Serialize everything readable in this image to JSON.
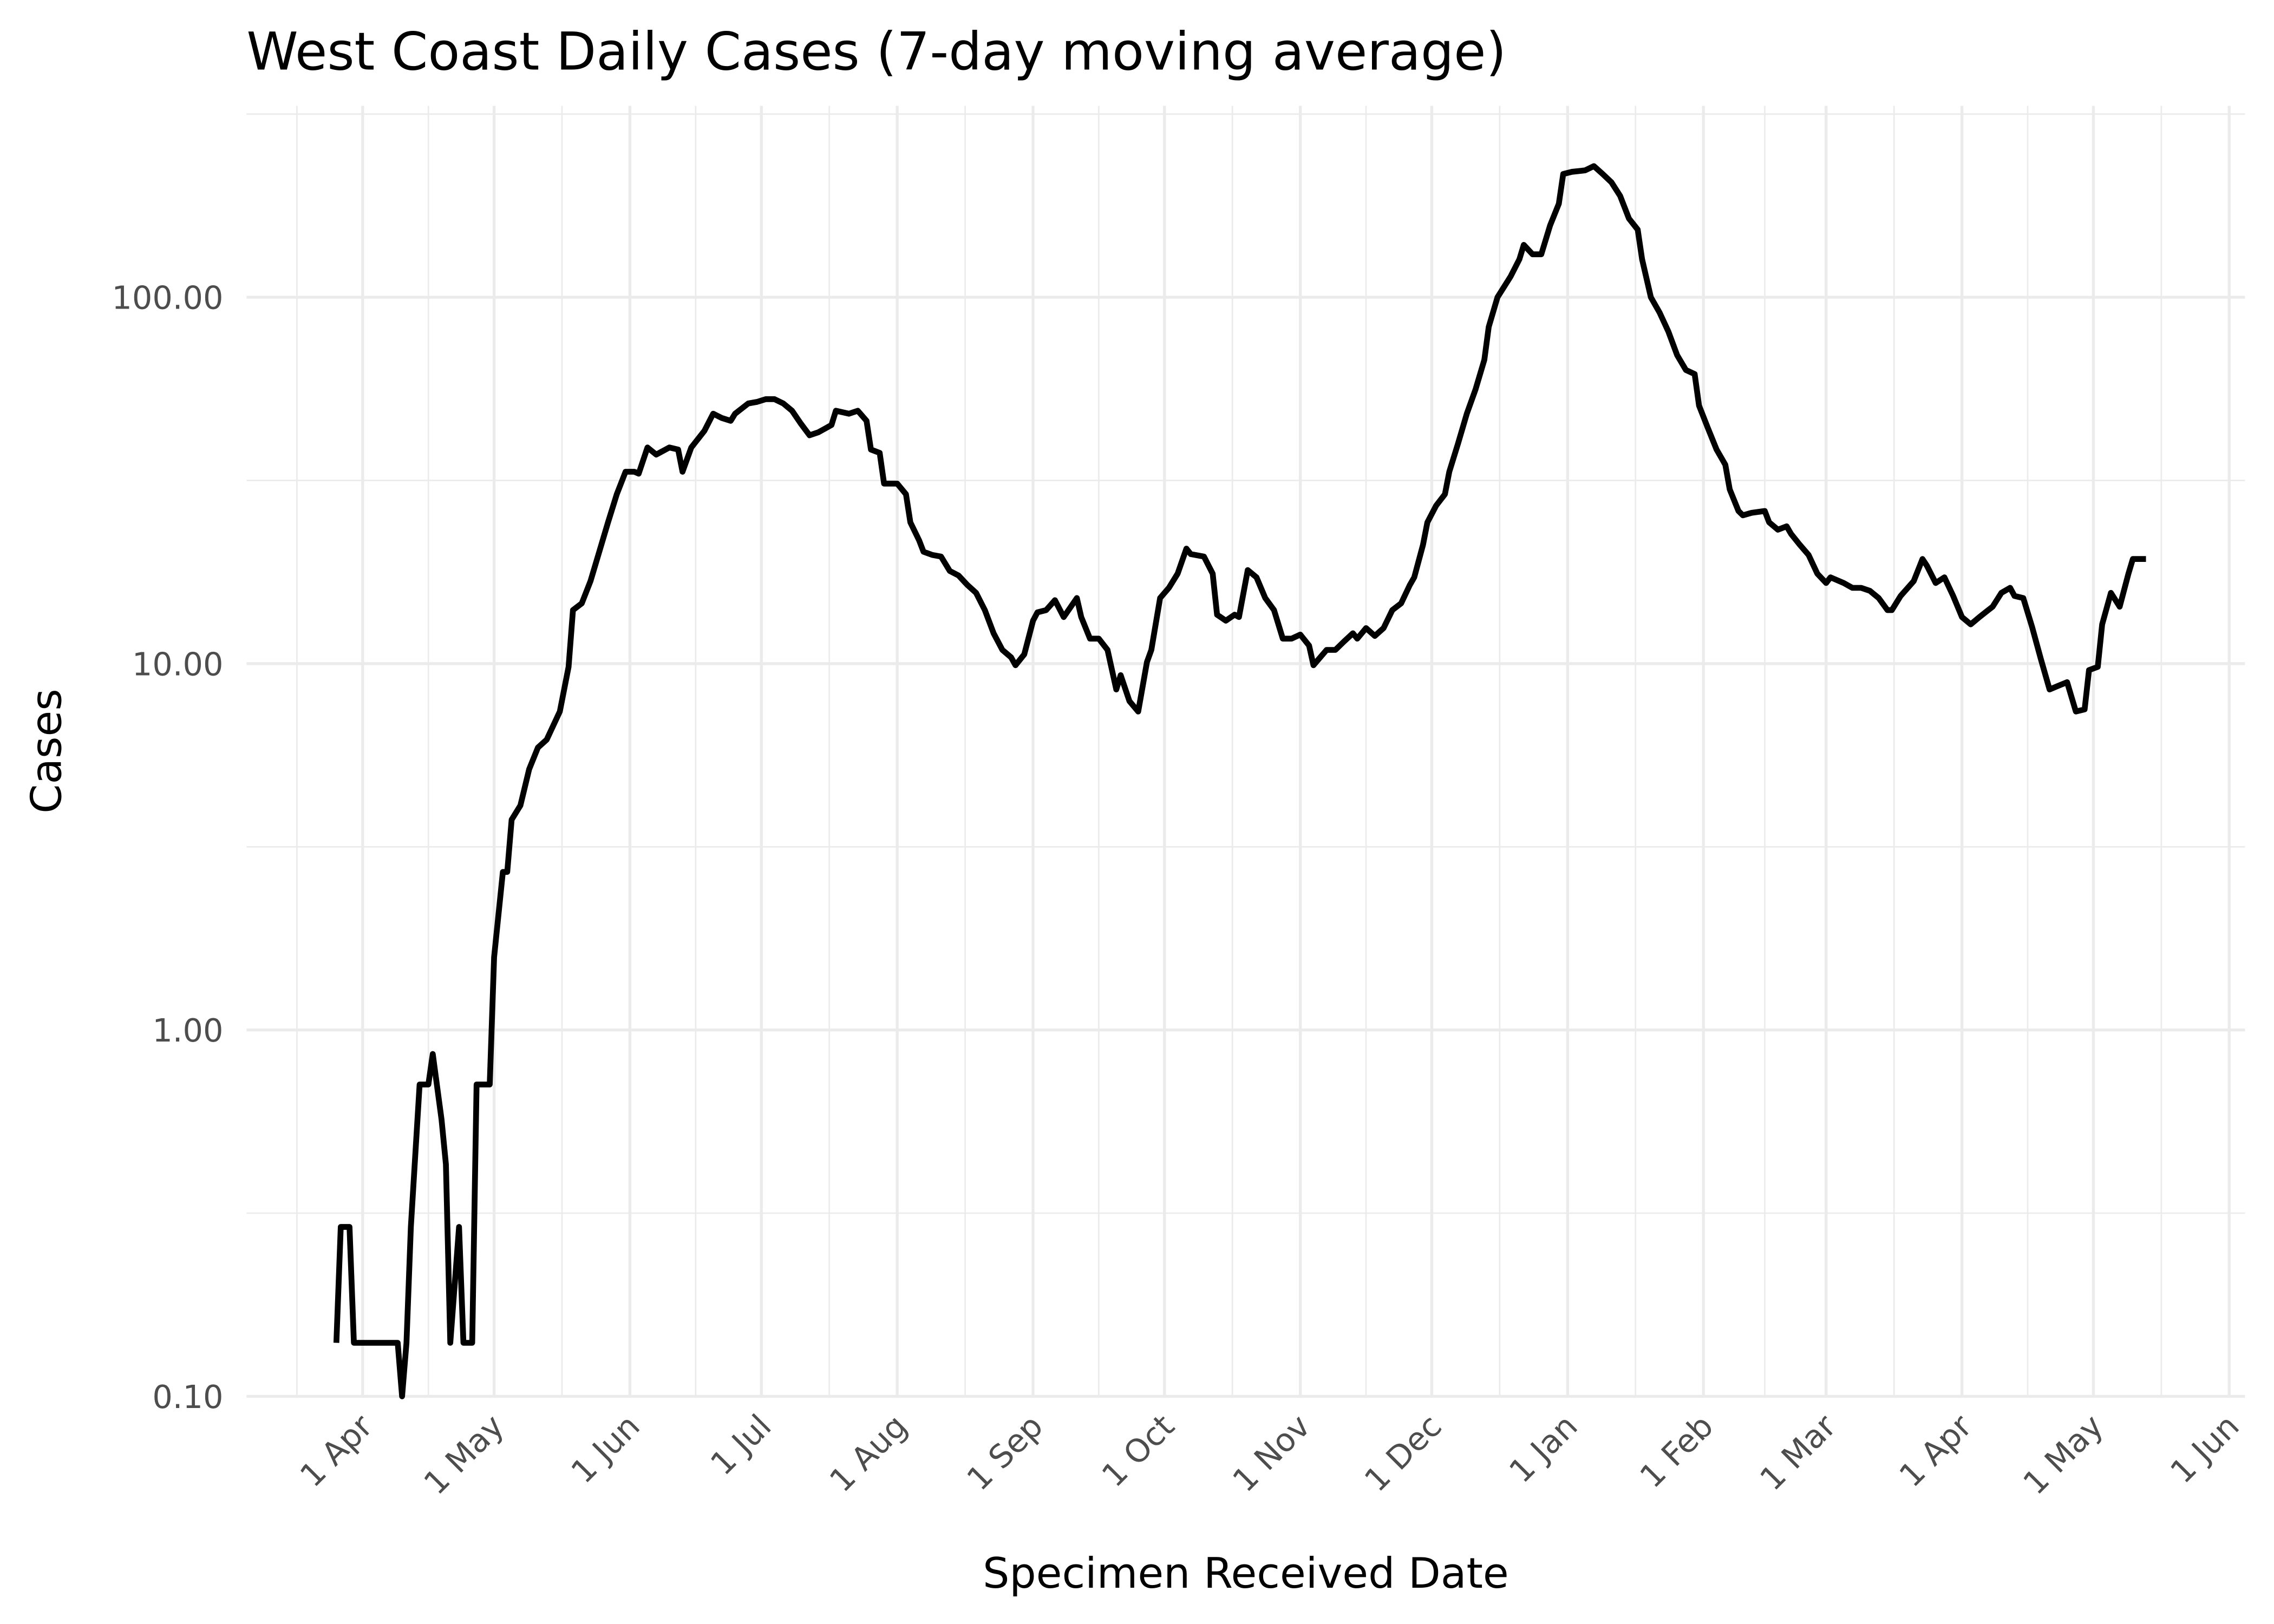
{
  "chart_data": {
    "type": "line",
    "title": "West Coast Daily Cases (7-day moving average)",
    "x_label": "Specimen Received Date",
    "y_label": "Cases",
    "y_scale": "log",
    "grid": true,
    "color": "#000000",
    "xlim": [
      -26.5,
      429.6
    ],
    "ylim": [
      0.1,
      333
    ],
    "xticks": [
      {
        "value": 0,
        "label": "1 Apr"
      },
      {
        "value": 30,
        "label": "1 May"
      },
      {
        "value": 61,
        "label": "1 Jun"
      },
      {
        "value": 91,
        "label": "1 Jul"
      },
      {
        "value": 122,
        "label": "1 Aug"
      },
      {
        "value": 153,
        "label": "1 Sep"
      },
      {
        "value": 183,
        "label": "1 Oct"
      },
      {
        "value": 214,
        "label": "1 Nov"
      },
      {
        "value": 244,
        "label": "1 Dec"
      },
      {
        "value": 275,
        "label": "1 Jan"
      },
      {
        "value": 306,
        "label": "1 Feb"
      },
      {
        "value": 334,
        "label": "1 Mar"
      },
      {
        "value": 365,
        "label": "1 Apr"
      },
      {
        "value": 395,
        "label": "1 May"
      },
      {
        "value": 426,
        "label": "1 Jun"
      }
    ],
    "yticks": [
      {
        "value": 0.1,
        "label": "0.10"
      },
      {
        "value": 1,
        "label": "1.00"
      },
      {
        "value": 10,
        "label": "10.00"
      },
      {
        "value": 100,
        "label": "100.00"
      }
    ],
    "x": [
      -6,
      -5,
      -3,
      -2,
      8,
      9,
      10,
      11,
      13,
      15,
      16,
      18,
      19,
      20,
      22,
      23,
      25,
      26,
      29,
      30,
      32,
      33,
      34,
      36,
      38,
      40,
      42,
      45,
      47,
      48,
      50,
      52,
      54,
      56,
      58,
      60,
      62,
      63,
      65,
      67,
      70,
      72,
      73,
      75,
      78,
      80,
      82,
      84,
      85,
      88,
      90,
      92,
      94,
      96,
      98,
      100,
      102,
      104,
      107,
      108,
      111,
      113,
      115,
      116,
      118,
      119,
      122,
      124,
      125,
      127,
      128,
      130,
      132,
      134,
      136,
      138,
      140,
      142,
      144,
      146,
      148,
      149,
      151,
      153,
      154,
      156,
      158,
      160,
      163,
      164,
      166,
      168,
      170,
      172,
      173,
      175,
      177,
      179,
      180,
      182,
      184,
      186,
      188,
      189,
      192,
      194,
      195,
      197,
      199,
      200,
      202,
      204,
      206,
      208,
      210,
      212,
      214,
      216,
      217,
      220,
      222,
      224,
      226,
      227,
      229,
      231,
      233,
      235,
      237,
      239,
      240,
      242,
      243,
      245,
      247,
      248,
      250,
      252,
      254,
      256,
      257,
      259,
      262,
      264,
      265,
      267,
      269,
      271,
      273,
      274,
      276,
      279,
      281,
      283,
      285,
      287,
      289,
      291,
      292,
      294,
      296,
      298,
      300,
      302,
      304,
      305,
      307,
      309,
      311,
      312,
      314,
      315,
      317,
      320,
      321,
      323,
      325,
      326,
      328,
      330,
      332,
      334,
      335,
      338,
      340,
      342,
      344,
      346,
      348,
      349,
      351,
      354,
      356,
      357,
      359,
      361,
      363,
      365,
      367,
      369,
      371,
      372,
      374,
      376,
      377,
      379,
      381,
      383,
      385,
      387,
      389,
      391,
      393,
      394,
      396,
      397,
      399,
      401,
      403,
      404,
      407
    ],
    "values": [
      0.14,
      0.29,
      0.29,
      0.14,
      0.14,
      0.1,
      0.14,
      0.29,
      0.71,
      0.71,
      0.86,
      0.57,
      0.43,
      0.14,
      0.29,
      0.14,
      0.14,
      0.71,
      0.71,
      1.58,
      2.7,
      2.7,
      3.75,
      4.1,
      5.15,
      5.9,
      6.2,
      7.4,
      9.8,
      14.0,
      14.6,
      16.8,
      20.2,
      24.3,
      29.0,
      33.4,
      33.4,
      33.0,
      38.9,
      37.2,
      38.9,
      38.4,
      33.4,
      38.9,
      43.2,
      48.1,
      46.8,
      46.0,
      48.1,
      51.3,
      51.8,
      52.7,
      52.7,
      51.3,
      49.0,
      45.2,
      42.0,
      42.8,
      44.8,
      49.0,
      48.1,
      49.0,
      46.0,
      38.4,
      37.6,
      31.0,
      31.0,
      29.0,
      24.3,
      21.7,
      20.2,
      19.8,
      19.6,
      17.9,
      17.4,
      16.4,
      15.6,
      14.0,
      12.1,
      10.9,
      10.4,
      9.9,
      10.6,
      13.1,
      13.8,
      14.0,
      14.9,
      13.4,
      15.1,
      13.4,
      11.7,
      11.7,
      10.9,
      8.5,
      9.3,
      7.9,
      7.4,
      10.1,
      10.9,
      15.1,
      16.1,
      17.6,
      20.6,
      19.9,
      19.6,
      17.6,
      13.6,
      13.1,
      13.6,
      13.4,
      18.0,
      17.2,
      15.1,
      14.0,
      11.7,
      11.7,
      12.0,
      11.2,
      9.9,
      10.9,
      10.9,
      11.5,
      12.1,
      11.7,
      12.5,
      11.9,
      12.5,
      14.0,
      14.6,
      16.4,
      17.2,
      21.1,
      24.3,
      27.0,
      29.0,
      33.4,
      39.9,
      48.1,
      56.1,
      67.5,
      83.0,
      100,
      114,
      127,
      139,
      131,
      131,
      157,
      180,
      217,
      220,
      222,
      228,
      217,
      206,
      189,
      164,
      153,
      127,
      100,
      90.8,
      80.6,
      69.5,
      63.3,
      61.7,
      50.6,
      44.0,
      38.4,
      34.9,
      29.9,
      26.1,
      25.4,
      25.8,
      26.1,
      24.3,
      23.2,
      23.7,
      22.6,
      21.1,
      19.8,
      17.6,
      16.6,
      17.2,
      16.6,
      16.1,
      16.1,
      15.8,
      15.1,
      14.0,
      14.0,
      15.3,
      16.8,
      19.3,
      18.5,
      16.6,
      17.2,
      15.3,
      13.4,
      12.8,
      13.4,
      14.0,
      14.3,
      15.6,
      16.1,
      15.3,
      15.1,
      12.6,
      10.3,
      8.5,
      8.7,
      8.9,
      7.4,
      7.5,
      9.6,
      9.8,
      12.8,
      15.6,
      14.3,
      17.6,
      19.3,
      19.3
    ]
  }
}
